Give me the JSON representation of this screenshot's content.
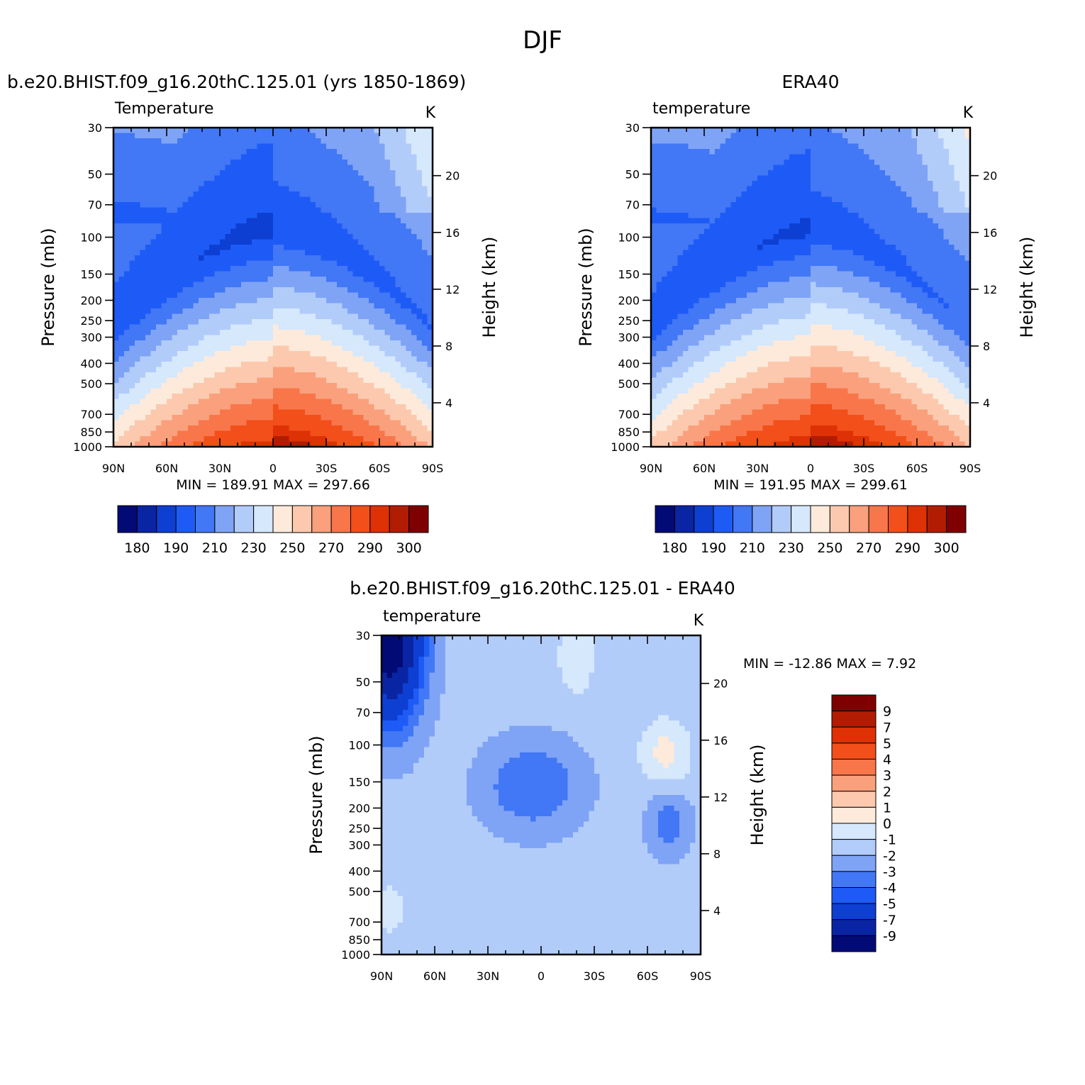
{
  "figure_title": "DJF",
  "chart_data": [
    {
      "type": "heatmap",
      "title": "b.e20.BHIST.f09_g16.20thC.125.01 (yrs 1850-1869)",
      "variable": "Temperature",
      "units": "K",
      "ylabel": "Pressure (mb)",
      "ylabel_right": "Height (km)",
      "x_ticks": [
        "90N",
        "60N",
        "30N",
        "0",
        "30S",
        "60S",
        "90S"
      ],
      "y_ticks": [
        "30",
        "50",
        "70",
        "100",
        "150",
        "200",
        "250",
        "300",
        "400",
        "500",
        "700",
        "850",
        "1000"
      ],
      "y_ticks_right": [
        "20",
        "16",
        "12",
        "8",
        "4"
      ],
      "min_label": "MIN = 189.91",
      "max_label": "MAX = 297.66",
      "min": 189.91,
      "max": 297.66,
      "colorbar_labels": [
        "180",
        "190",
        "210",
        "230",
        "250",
        "270",
        "290",
        "300"
      ],
      "colorbar_colors": [
        "#020b75",
        "#0a25a3",
        "#0d3fd3",
        "#1e5bf6",
        "#4277f5",
        "#7fa4f6",
        "#b2ccfa",
        "#d5e8fc",
        "#fdeadb",
        "#fcc9ae",
        "#faa07c",
        "#f8764a",
        "#f24f1a",
        "#de3105",
        "#b21c02",
        "#7f0000"
      ]
    },
    {
      "type": "heatmap",
      "title": "ERA40",
      "variable": "temperature",
      "units": "K",
      "ylabel": "Pressure (mb)",
      "ylabel_right": "Height (km)",
      "x_ticks": [
        "90N",
        "60N",
        "30N",
        "0",
        "30S",
        "60S",
        "90S"
      ],
      "y_ticks": [
        "30",
        "50",
        "70",
        "100",
        "150",
        "200",
        "250",
        "300",
        "400",
        "500",
        "700",
        "850",
        "1000"
      ],
      "y_ticks_right": [
        "20",
        "16",
        "12",
        "8",
        "4"
      ],
      "min_label": "MIN = 191.95",
      "max_label": "MAX = 299.61",
      "min": 191.95,
      "max": 299.61,
      "colorbar_labels": [
        "180",
        "190",
        "210",
        "230",
        "250",
        "270",
        "290",
        "300"
      ],
      "colorbar_colors": [
        "#020b75",
        "#0a25a3",
        "#0d3fd3",
        "#1e5bf6",
        "#4277f5",
        "#7fa4f6",
        "#b2ccfa",
        "#d5e8fc",
        "#fdeadb",
        "#fcc9ae",
        "#faa07c",
        "#f8764a",
        "#f24f1a",
        "#de3105",
        "#b21c02",
        "#7f0000"
      ]
    },
    {
      "type": "heatmap",
      "title": "b.e20.BHIST.f09_g16.20thC.125.01 - ERA40",
      "variable": "temperature",
      "units": "K",
      "ylabel": "Pressure (mb)",
      "ylabel_right": "Height (km)",
      "x_ticks": [
        "90N",
        "60N",
        "30N",
        "0",
        "30S",
        "60S",
        "90S"
      ],
      "y_ticks": [
        "30",
        "50",
        "70",
        "100",
        "150",
        "200",
        "250",
        "300",
        "400",
        "500",
        "700",
        "850",
        "1000"
      ],
      "y_ticks_right": [
        "20",
        "16",
        "12",
        "8",
        "4"
      ],
      "min_label": "MIN = -12.86",
      "max_label": "MAX = 7.92",
      "min": -12.86,
      "max": 7.92,
      "colorbar_labels": [
        "9",
        "7",
        "5",
        "4",
        "3",
        "2",
        "1",
        "0",
        "-1",
        "-2",
        "-3",
        "-4",
        "-5",
        "-7",
        "-9"
      ],
      "colorbar_colors": [
        "#7f0000",
        "#b21c02",
        "#de3105",
        "#f24f1a",
        "#f8764a",
        "#faa07c",
        "#fcc9ae",
        "#fdeadb",
        "#d5e8fc",
        "#b2ccfa",
        "#7fa4f6",
        "#4277f5",
        "#1e5bf6",
        "#0d3fd3",
        "#0a25a3",
        "#020b75"
      ]
    }
  ]
}
